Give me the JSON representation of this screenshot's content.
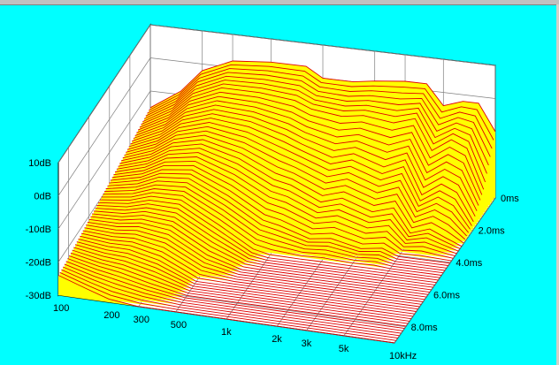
{
  "window": {
    "background_color": "#00FFFF"
  },
  "chart_data": {
    "type": "waterfall-3d",
    "title": "",
    "xlabel": "",
    "ylabel": "",
    "x_scale": "log",
    "x_tick_labels": [
      "100",
      "200",
      "300",
      "500",
      "1k",
      "2k",
      "3k",
      "5k",
      "10kHz"
    ],
    "x_tick_values_hz": [
      100,
      200,
      300,
      500,
      1000,
      2000,
      3000,
      5000,
      10000
    ],
    "z_tick_labels": [
      "10dB",
      "0dB",
      "-10dB",
      "-20dB",
      "-30dB"
    ],
    "z_tick_values_db": [
      10,
      0,
      -10,
      -20,
      -30
    ],
    "t_tick_labels": [
      "0ms",
      "2.0ms",
      "4.0ms",
      "6.0ms",
      "8.0ms"
    ],
    "t_tick_values_ms": [
      0,
      2,
      4,
      6,
      8
    ],
    "xlim_hz": [
      100,
      10000
    ],
    "zlim_db": [
      -30,
      10
    ],
    "tlim_ms": [
      0,
      9
    ],
    "grid": true,
    "colors": {
      "surface_fill": "#FFFF00",
      "surface_line": "#E00000",
      "walls": "#FFFFFF",
      "grid": "#808080",
      "floor_fill": "#FFFFFF"
    },
    "series": [
      {
        "t_ms": 0,
        "points": [
          [
            100,
            -15
          ],
          [
            150,
            -9
          ],
          [
            200,
            -2
          ],
          [
            300,
            2
          ],
          [
            500,
            3
          ],
          [
            800,
            3
          ],
          [
            1000,
            0
          ],
          [
            1500,
            0
          ],
          [
            2000,
            1
          ],
          [
            3000,
            2
          ],
          [
            4000,
            2
          ],
          [
            5000,
            -4
          ],
          [
            6500,
            -2
          ],
          [
            8000,
            -2
          ],
          [
            10000,
            -10
          ]
        ]
      },
      {
        "t_ms": 1,
        "points": [
          [
            100,
            -16
          ],
          [
            150,
            -11
          ],
          [
            200,
            -5
          ],
          [
            300,
            -1
          ],
          [
            500,
            -1
          ],
          [
            800,
            -2
          ],
          [
            1000,
            -4
          ],
          [
            1500,
            -5
          ],
          [
            2000,
            -4
          ],
          [
            3000,
            -5
          ],
          [
            4000,
            -3
          ],
          [
            5000,
            -12
          ],
          [
            6500,
            -8
          ],
          [
            8000,
            -10
          ],
          [
            10000,
            -22
          ]
        ]
      },
      {
        "t_ms": 2,
        "points": [
          [
            100,
            -17
          ],
          [
            150,
            -13
          ],
          [
            200,
            -8
          ],
          [
            300,
            -5
          ],
          [
            500,
            -6
          ],
          [
            800,
            -9
          ],
          [
            1000,
            -11
          ],
          [
            1500,
            -14
          ],
          [
            2000,
            -12
          ],
          [
            3000,
            -15
          ],
          [
            4000,
            -12
          ],
          [
            5000,
            -22
          ],
          [
            6500,
            -18
          ],
          [
            8000,
            -20
          ],
          [
            10000,
            -28
          ]
        ]
      },
      {
        "t_ms": 3,
        "points": [
          [
            100,
            -18
          ],
          [
            150,
            -15
          ],
          [
            200,
            -11
          ],
          [
            300,
            -9
          ],
          [
            500,
            -12
          ],
          [
            800,
            -17
          ],
          [
            1000,
            -18
          ],
          [
            1500,
            -22
          ],
          [
            2000,
            -20
          ],
          [
            3000,
            -23
          ],
          [
            4000,
            -21
          ],
          [
            5000,
            -28
          ],
          [
            6500,
            -26
          ],
          [
            8000,
            -28
          ],
          [
            10000,
            -30
          ]
        ]
      },
      {
        "t_ms": 4,
        "points": [
          [
            100,
            -19
          ],
          [
            150,
            -17
          ],
          [
            200,
            -14
          ],
          [
            300,
            -13
          ],
          [
            500,
            -18
          ],
          [
            800,
            -24
          ],
          [
            1000,
            -25
          ],
          [
            1500,
            -28
          ],
          [
            2000,
            -27
          ],
          [
            3000,
            -29
          ],
          [
            4000,
            -28
          ],
          [
            5000,
            -30
          ],
          [
            6500,
            -30
          ],
          [
            8000,
            -30
          ],
          [
            10000,
            -30
          ]
        ]
      },
      {
        "t_ms": 5,
        "points": [
          [
            100,
            -20
          ],
          [
            150,
            -19
          ],
          [
            200,
            -17
          ],
          [
            300,
            -17
          ],
          [
            500,
            -23
          ],
          [
            800,
            -29
          ],
          [
            1000,
            -30
          ],
          [
            1500,
            -30
          ],
          [
            2000,
            -30
          ],
          [
            3000,
            -30
          ],
          [
            4000,
            -30
          ],
          [
            5000,
            -30
          ],
          [
            6500,
            -30
          ],
          [
            8000,
            -30
          ],
          [
            10000,
            -30
          ]
        ]
      },
      {
        "t_ms": 6,
        "points": [
          [
            100,
            -21
          ],
          [
            150,
            -21
          ],
          [
            200,
            -20
          ],
          [
            300,
            -21
          ],
          [
            500,
            -27
          ],
          [
            800,
            -30
          ],
          [
            1000,
            -30
          ],
          [
            1500,
            -30
          ],
          [
            2000,
            -30
          ],
          [
            3000,
            -30
          ],
          [
            4000,
            -30
          ],
          [
            5000,
            -30
          ],
          [
            6500,
            -30
          ],
          [
            8000,
            -30
          ],
          [
            10000,
            -30
          ]
        ]
      },
      {
        "t_ms": 7,
        "points": [
          [
            100,
            -22
          ],
          [
            150,
            -23
          ],
          [
            200,
            -23
          ],
          [
            300,
            -25
          ],
          [
            500,
            -30
          ],
          [
            800,
            -30
          ],
          [
            1000,
            -30
          ],
          [
            1500,
            -30
          ],
          [
            2000,
            -30
          ],
          [
            3000,
            -30
          ],
          [
            4000,
            -30
          ],
          [
            5000,
            -30
          ],
          [
            6500,
            -30
          ],
          [
            8000,
            -30
          ],
          [
            10000,
            -30
          ]
        ]
      },
      {
        "t_ms": 8,
        "points": [
          [
            100,
            -23
          ],
          [
            150,
            -25
          ],
          [
            200,
            -26
          ],
          [
            300,
            -28
          ],
          [
            500,
            -30
          ],
          [
            800,
            -30
          ],
          [
            1000,
            -30
          ],
          [
            1500,
            -30
          ],
          [
            2000,
            -30
          ],
          [
            3000,
            -30
          ],
          [
            4000,
            -30
          ],
          [
            5000,
            -30
          ],
          [
            6500,
            -30
          ],
          [
            8000,
            -30
          ],
          [
            10000,
            -30
          ]
        ]
      },
      {
        "t_ms": 9,
        "points": [
          [
            100,
            -24
          ],
          [
            150,
            -27
          ],
          [
            200,
            -29
          ],
          [
            300,
            -30
          ],
          [
            500,
            -30
          ],
          [
            800,
            -30
          ],
          [
            1000,
            -30
          ],
          [
            1500,
            -30
          ],
          [
            2000,
            -30
          ],
          [
            3000,
            -30
          ],
          [
            4000,
            -30
          ],
          [
            5000,
            -30
          ],
          [
            6500,
            -30
          ],
          [
            8000,
            -30
          ],
          [
            10000,
            -30
          ]
        ]
      }
    ]
  }
}
